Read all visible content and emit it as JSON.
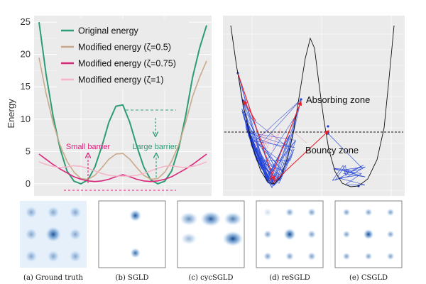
{
  "chart_data": [
    {
      "type": "line",
      "title": "",
      "xlabel": "",
      "ylabel": "Energy",
      "ylim": [
        -1,
        26
      ],
      "yticks": [
        0,
        5,
        10,
        15,
        20,
        25
      ],
      "x": [
        -6.0,
        -5.5,
        -5.0,
        -4.5,
        -4.0,
        -3.5,
        -3.0,
        -2.5,
        -2.0,
        -1.5,
        -1.0,
        -0.5,
        0.0,
        0.5,
        1.0,
        1.5,
        2.0,
        2.5,
        3.0,
        3.5,
        4.0,
        4.5,
        5.0,
        5.5,
        6.0
      ],
      "series": [
        {
          "name": "Original energy",
          "color": "#2e9c74",
          "values": [
            25.0,
            17.0,
            10.5,
            5.5,
            2.0,
            0.4,
            0.0,
            0.6,
            2.6,
            5.8,
            9.5,
            12.0,
            12.2,
            9.5,
            5.8,
            2.6,
            0.6,
            0.0,
            0.4,
            2.0,
            5.5,
            10.5,
            16.5,
            21.0,
            24.5
          ]
        },
        {
          "name": "Modified energy (ζ=0.5)",
          "color": "#c9a98a",
          "values": [
            19.5,
            14.0,
            9.5,
            6.0,
            3.5,
            1.8,
            0.8,
            0.7,
            1.3,
            2.5,
            3.8,
            4.6,
            4.7,
            3.8,
            2.5,
            1.3,
            0.7,
            0.8,
            1.8,
            3.5,
            6.0,
            9.5,
            13.5,
            16.5,
            19.0
          ]
        },
        {
          "name": "Modified energy (ζ=0.75)",
          "color": "#d9257a",
          "values": [
            4.6,
            3.8,
            3.0,
            2.3,
            1.7,
            1.1,
            0.7,
            0.45,
            0.35,
            0.45,
            0.7,
            1.1,
            1.4,
            1.1,
            0.7,
            0.45,
            0.35,
            0.45,
            0.7,
            1.1,
            1.7,
            2.3,
            3.0,
            3.8,
            4.6
          ]
        },
        {
          "name": "Modified energy (ζ=1)",
          "color": "#f7b6c8",
          "values": [
            3.4,
            3.0,
            2.7,
            2.5,
            2.6,
            2.8,
            2.7,
            2.4,
            2.0,
            1.6,
            1.3,
            1.2,
            1.2,
            1.2,
            1.3,
            1.6,
            2.0,
            2.4,
            2.7,
            2.8,
            2.6,
            2.5,
            2.7,
            3.0,
            3.4
          ]
        }
      ],
      "annotations": [
        {
          "text": "Small barrier",
          "color": "#d9257a"
        },
        {
          "text": "Large barrier",
          "color": "#2e9c74"
        }
      ]
    },
    {
      "type": "line",
      "title": "",
      "annotations": [
        "Absorbing zone",
        "Bouncy zone"
      ],
      "colors": {
        "curve": "#111111",
        "trajectory": "#1f3fd6",
        "jump": "#e8202a"
      }
    },
    {
      "type": "heatmap",
      "panels": [
        {
          "caption": "(a) Ground truth"
        },
        {
          "caption": "(b) SGLD"
        },
        {
          "caption": "(c) cycSGLD"
        },
        {
          "caption": "(d) reSGLD"
        },
        {
          "caption": "(e) CSGLD"
        }
      ],
      "color": "#1f5fa8"
    }
  ]
}
